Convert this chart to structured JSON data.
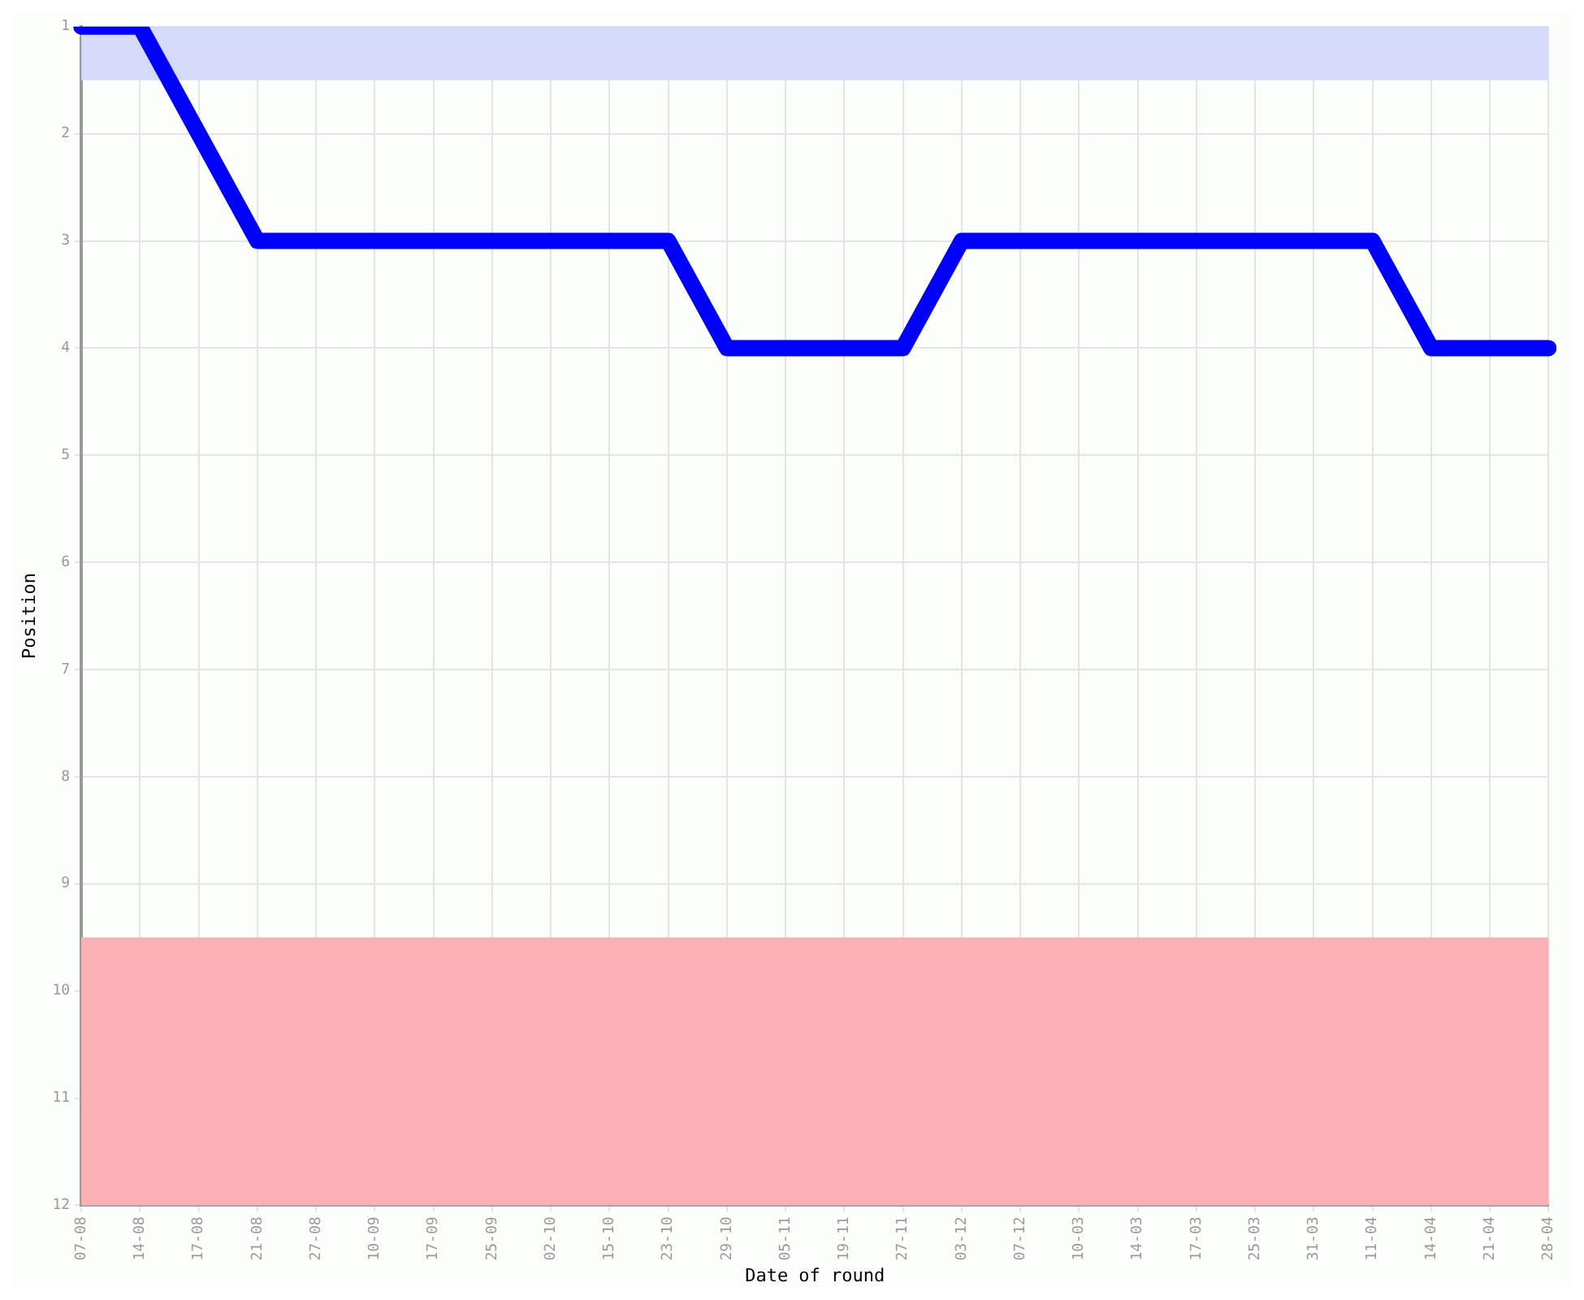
{
  "chart_data": {
    "type": "line",
    "xlabel": "Date of round",
    "ylabel": "Position",
    "categories": [
      "07-08",
      "14-08",
      "17-08",
      "21-08",
      "27-08",
      "10-09",
      "17-09",
      "25-09",
      "02-10",
      "15-10",
      "23-10",
      "29-10",
      "05-11",
      "19-11",
      "27-11",
      "03-12",
      "07-12",
      "10-03",
      "14-03",
      "17-03",
      "25-03",
      "31-03",
      "11-04",
      "14-04",
      "21-04",
      "28-04"
    ],
    "series": [
      {
        "color": "#0000ff",
        "values": [
          1,
          1,
          2,
          3,
          3,
          3,
          3,
          3,
          3,
          3,
          3,
          4,
          4,
          4,
          4,
          3,
          3,
          3,
          3,
          3,
          3,
          3,
          3,
          4,
          4,
          4
        ]
      }
    ],
    "ylim": [
      12,
      1
    ],
    "yticks": [
      1,
      2,
      3,
      4,
      5,
      6,
      7,
      8,
      9,
      10,
      11,
      12
    ],
    "grid": true,
    "marker": "none",
    "line_style": "solid",
    "legend": false,
    "bands": [
      {
        "axis": "y",
        "from": 1,
        "to": 1.5,
        "color": "#d4dafa"
      },
      {
        "axis": "y",
        "from": 9.5,
        "to": 12,
        "color": "#fab0b4"
      }
    ]
  }
}
